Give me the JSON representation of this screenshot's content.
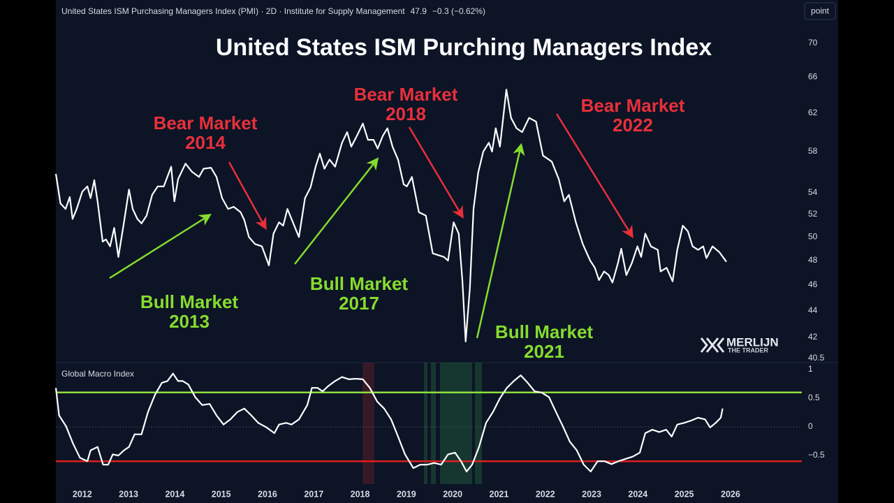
{
  "header": {
    "title": "United States ISM Purchasing Managers Index (PMI) · 2D · Institute for Supply Management",
    "last": "47.9",
    "change": "−0.3 (−0.62%)"
  },
  "button": "point",
  "logo": {
    "name": "MERLIJN",
    "tagline": "THE TRADER"
  },
  "chart_data": [
    {
      "type": "line",
      "title": "United States ISM Purching Managers Index",
      "log_scale": true,
      "grid": false,
      "color": "#ffffff",
      "xlim": [
        2011.43,
        2027.57
      ],
      "ylim": [
        40.5,
        70
      ],
      "yticks": [
        40.5,
        42,
        44,
        46,
        48,
        50,
        52,
        54,
        58,
        62,
        66,
        70
      ],
      "x": [
        2011.43,
        2011.53,
        2011.64,
        2011.73,
        2011.79,
        2011.88,
        2012.0,
        2012.11,
        2012.18,
        2012.26,
        2012.33,
        2012.44,
        2012.51,
        2012.6,
        2012.69,
        2012.78,
        2012.9,
        2013.01,
        2013.09,
        2013.19,
        2013.28,
        2013.39,
        2013.51,
        2013.63,
        2013.76,
        2013.92,
        2013.99,
        2014.07,
        2014.23,
        2014.37,
        2014.52,
        2014.62,
        2014.78,
        2014.9,
        2015.02,
        2015.15,
        2015.27,
        2015.42,
        2015.5,
        2015.6,
        2015.73,
        2015.88,
        2016.03,
        2016.13,
        2016.25,
        2016.34,
        2016.43,
        2016.52,
        2016.68,
        2016.81,
        2016.93,
        2017.04,
        2017.13,
        2017.23,
        2017.34,
        2017.46,
        2017.61,
        2017.72,
        2017.81,
        2017.93,
        2018.06,
        2018.17,
        2018.29,
        2018.38,
        2018.49,
        2018.59,
        2018.7,
        2018.82,
        2018.94,
        2019.01,
        2019.12,
        2019.27,
        2019.42,
        2019.57,
        2019.81,
        2019.9,
        2020.02,
        2020.13,
        2020.21,
        2020.28,
        2020.37,
        2020.45,
        2020.55,
        2020.66,
        2020.78,
        2020.85,
        2020.93,
        2021.02,
        2021.16,
        2021.26,
        2021.38,
        2021.5,
        2021.65,
        2021.8,
        2021.95,
        2022.14,
        2022.29,
        2022.41,
        2022.51,
        2022.66,
        2022.81,
        2022.97,
        2023.07,
        2023.16,
        2023.27,
        2023.37,
        2023.45,
        2023.57,
        2023.64,
        2023.75,
        2023.87,
        2023.99,
        2024.07,
        2024.16,
        2024.28,
        2024.43,
        2024.49,
        2024.62,
        2024.75,
        2024.85,
        2024.97,
        2025.08,
        2025.18,
        2025.3,
        2025.41,
        2025.48,
        2025.61,
        2025.76,
        2025.91
      ],
      "values": [
        55.8,
        53.0,
        52.5,
        53.6,
        51.6,
        52.5,
        54.1,
        54.6,
        53.5,
        55.2,
        53.2,
        49.6,
        49.8,
        49.2,
        50.8,
        48.3,
        51.3,
        54.3,
        52.5,
        51.6,
        51.2,
        51.9,
        53.8,
        54.6,
        54.6,
        56.5,
        53.2,
        55.3,
        56.8,
        56.0,
        55.5,
        56.3,
        56.4,
        55.5,
        53.5,
        52.5,
        52.7,
        52.2,
        51.5,
        50.0,
        49.4,
        49.2,
        47.6,
        50.3,
        51.3,
        51.0,
        52.5,
        51.6,
        50.0,
        53.5,
        54.5,
        56.5,
        57.8,
        56.3,
        57.2,
        56.5,
        58.9,
        60.0,
        58.5,
        59.6,
        60.9,
        59.2,
        59.2,
        58.3,
        59.6,
        60.4,
        58.5,
        57.2,
        54.8,
        54.6,
        55.5,
        52.2,
        51.9,
        48.6,
        48.3,
        48.0,
        51.3,
        50.3,
        46.3,
        41.7,
        45.7,
        52.5,
        55.9,
        58.0,
        58.9,
        58.0,
        60.4,
        58.5,
        64.6,
        61.5,
        60.4,
        60.0,
        61.5,
        61.1,
        57.6,
        57.0,
        55.3,
        53.2,
        53.8,
        51.3,
        49.4,
        48.0,
        47.4,
        46.4,
        47.1,
        46.8,
        46.2,
        47.8,
        49.0,
        46.8,
        47.8,
        49.2,
        48.3,
        50.3,
        49.2,
        48.9,
        47.1,
        47.4,
        46.3,
        48.9,
        51.0,
        50.5,
        49.2,
        48.9,
        49.2,
        48.2,
        49.2,
        48.7,
        47.9
      ],
      "annotations": [
        {
          "lines": [
            "Bear Market",
            "2014"
          ],
          "color": "#e8303a"
        },
        {
          "lines": [
            "Bear Market",
            "2018"
          ],
          "color": "#e8303a"
        },
        {
          "lines": [
            "Bear Market",
            "2022"
          ],
          "color": "#e8303a"
        },
        {
          "lines": [
            "Bull Market",
            "2013"
          ],
          "color": "#86dc2e"
        },
        {
          "lines": [
            "Bull Market",
            "2017"
          ],
          "color": "#86dc2e"
        },
        {
          "lines": [
            "Bull Market",
            "2021"
          ],
          "color": "#86dc2e"
        }
      ]
    },
    {
      "type": "line",
      "title": "Global Macro Index",
      "log_scale": false,
      "grid": false,
      "color": "#ffffff",
      "xlim": [
        2011.43,
        2027.57
      ],
      "ylim": [
        -1,
        1
      ],
      "xticks": [
        2012,
        2013,
        2014,
        2015,
        2016,
        2017,
        2018,
        2019,
        2020,
        2021,
        2022,
        2023,
        2024,
        2025,
        2026
      ],
      "yticks": [
        1,
        0.5,
        0,
        {
          "value": -0.5,
          "label": "−0.5"
        }
      ],
      "reference_lines": [
        {
          "value": 0.6,
          "color": "#8fe03c",
          "style": "solid"
        },
        {
          "value": 0,
          "color": "#5b6475",
          "style": "dotted"
        },
        {
          "value": -0.6,
          "color": "#e01e1e",
          "style": "solid"
        }
      ],
      "x": [
        2011.43,
        2011.5,
        2011.65,
        2011.8,
        2011.95,
        2012.11,
        2012.18,
        2012.33,
        2012.45,
        2012.56,
        2012.66,
        2012.78,
        2012.9,
        2013.01,
        2013.13,
        2013.28,
        2013.42,
        2013.57,
        2013.72,
        2013.84,
        2013.96,
        2014.07,
        2014.17,
        2014.29,
        2014.44,
        2014.59,
        2014.75,
        2014.9,
        2015.05,
        2015.2,
        2015.35,
        2015.5,
        2015.65,
        2015.8,
        2015.98,
        2016.15,
        2016.25,
        2016.4,
        2016.52,
        2016.68,
        2016.86,
        2016.96,
        2017.08,
        2017.19,
        2017.31,
        2017.46,
        2017.61,
        2017.76,
        2017.91,
        2018.06,
        2018.21,
        2018.37,
        2018.52,
        2018.67,
        2018.82,
        2018.97,
        2019.15,
        2019.3,
        2019.45,
        2019.6,
        2019.75,
        2019.9,
        2020.05,
        2020.18,
        2020.3,
        2020.42,
        2020.57,
        2020.72,
        2020.87,
        2021.02,
        2021.17,
        2021.32,
        2021.47,
        2021.62,
        2021.77,
        2021.92,
        2022.08,
        2022.23,
        2022.38,
        2022.53,
        2022.68,
        2022.83,
        2022.98,
        2023.13,
        2023.28,
        2023.43,
        2023.58,
        2023.73,
        2023.89,
        2024.04,
        2024.16,
        2024.31,
        2024.46,
        2024.61,
        2024.73,
        2024.85,
        2025.0,
        2025.15,
        2025.3,
        2025.45,
        2025.56,
        2025.68,
        2025.79,
        2025.83
      ],
      "values": [
        0.68,
        0.2,
        0.01,
        -0.29,
        -0.54,
        -0.6,
        -0.41,
        -0.35,
        -0.66,
        -0.66,
        -0.48,
        -0.5,
        -0.41,
        -0.35,
        -0.13,
        -0.13,
        0.26,
        0.56,
        0.77,
        0.8,
        0.93,
        0.8,
        0.8,
        0.74,
        0.52,
        0.38,
        0.4,
        0.2,
        0.04,
        0.13,
        0.26,
        0.32,
        0.2,
        0.07,
        -0.01,
        -0.11,
        0.04,
        0.07,
        0.04,
        0.13,
        0.38,
        0.68,
        0.68,
        0.62,
        0.71,
        0.8,
        0.87,
        0.83,
        0.84,
        0.83,
        0.68,
        0.44,
        0.32,
        0.13,
        -0.17,
        -0.48,
        -0.72,
        -0.66,
        -0.66,
        -0.63,
        -0.66,
        -0.48,
        -0.45,
        -0.6,
        -0.78,
        -0.66,
        -0.35,
        0.07,
        0.26,
        0.5,
        0.68,
        0.8,
        0.9,
        0.77,
        0.62,
        0.6,
        0.52,
        0.26,
        0.01,
        -0.26,
        -0.41,
        -0.66,
        -0.78,
        -0.6,
        -0.6,
        -0.65,
        -0.6,
        -0.56,
        -0.52,
        -0.45,
        -0.11,
        -0.05,
        -0.09,
        -0.05,
        -0.17,
        0.04,
        0.07,
        0.11,
        0.16,
        0.13,
        -0.01,
        0.07,
        0.16,
        0.32
      ]
    }
  ]
}
